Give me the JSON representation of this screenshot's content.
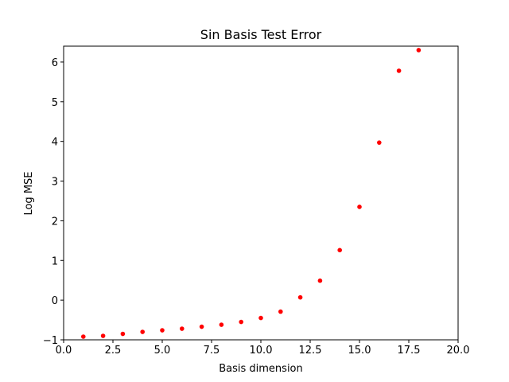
{
  "chart_data": {
    "type": "scatter",
    "title": "Sin Basis Test Error",
    "xlabel": "Basis dimension",
    "ylabel": "Log MSE",
    "xlim": [
      0,
      20
    ],
    "ylim": [
      -1,
      6.4
    ],
    "xticks": [
      0,
      2.5,
      5,
      7.5,
      10,
      12.5,
      15,
      17.5,
      20
    ],
    "xtick_labels": [
      "0.0",
      "2.5",
      "5.0",
      "7.5",
      "10.0",
      "12.5",
      "15.0",
      "17.5",
      "20.0"
    ],
    "yticks": [
      -1,
      0,
      1,
      2,
      3,
      4,
      5,
      6
    ],
    "ytick_labels": [
      "−1",
      "0",
      "1",
      "2",
      "3",
      "4",
      "5",
      "6"
    ],
    "grid": false,
    "marker_color": "#ff0000",
    "series": [
      {
        "x": [
          1,
          2,
          3,
          4,
          5,
          6,
          7,
          8,
          9,
          10,
          11,
          12,
          13,
          14,
          15,
          16,
          17,
          18
        ],
        "y": [
          -0.92,
          -0.9,
          -0.85,
          -0.8,
          -0.76,
          -0.72,
          -0.67,
          -0.62,
          -0.55,
          -0.45,
          -0.29,
          0.07,
          0.49,
          1.26,
          2.35,
          3.97,
          5.78,
          6.3
        ]
      }
    ]
  }
}
